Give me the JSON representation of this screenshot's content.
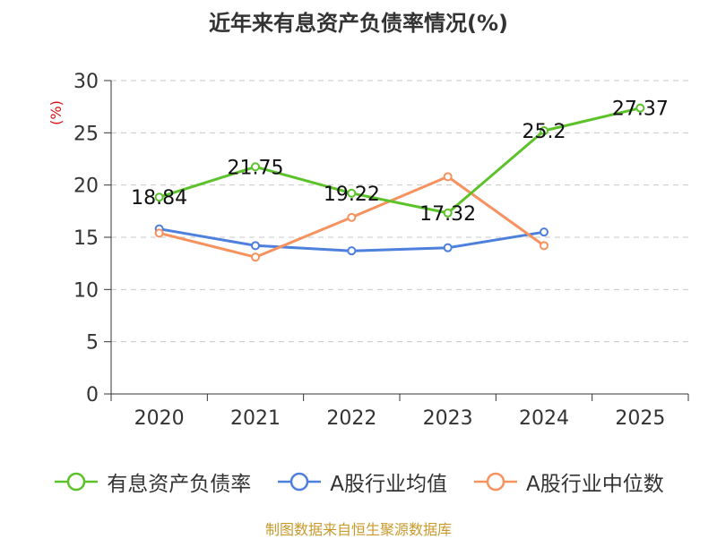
{
  "chart_data": {
    "type": "line",
    "title": "近年来有息资产负债率情况(%)",
    "ylabel": "(%)",
    "xlabel": "",
    "categories": [
      "2020",
      "2021",
      "2022",
      "2023",
      "2024",
      "2025"
    ],
    "ylim": [
      0,
      30
    ],
    "yticks": [
      0,
      5,
      10,
      15,
      20,
      25,
      30
    ],
    "grid": true,
    "legend_position": "bottom",
    "series": [
      {
        "name": "有息资产负债率",
        "color": "#5cc22a",
        "values": [
          18.84,
          21.75,
          19.22,
          17.32,
          25.2,
          27.37
        ],
        "labels": [
          "18.84",
          "21.75",
          "19.22",
          "17.32",
          "25.2",
          "27.37"
        ]
      },
      {
        "name": "A股行业均值",
        "color": "#4d7fdc",
        "values": [
          15.8,
          14.2,
          13.7,
          14.0,
          15.5,
          null
        ]
      },
      {
        "name": "A股行业中位数",
        "color": "#f5925e",
        "values": [
          15.4,
          13.1,
          16.9,
          20.8,
          14.2,
          null
        ]
      }
    ]
  },
  "footer": {
    "source": "制图数据来自恒生聚源数据库",
    "color": "#c89a2c"
  },
  "ylabel_color": "#d41111"
}
